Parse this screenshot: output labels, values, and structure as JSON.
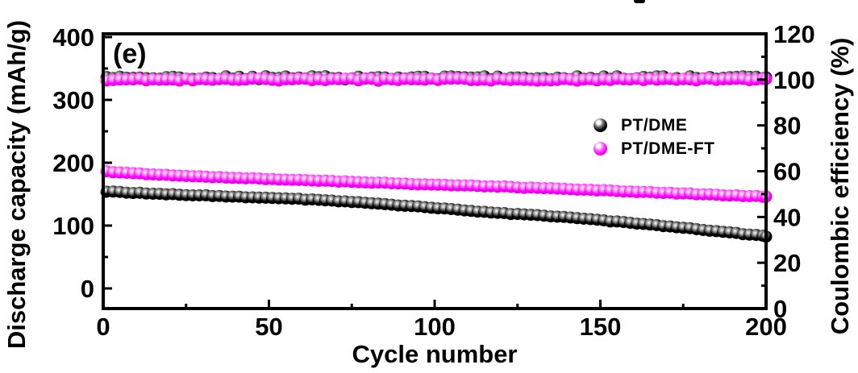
{
  "panel_label": "(e)",
  "axes": {
    "x": {
      "title": "Cycle number",
      "range": [
        0,
        200
      ],
      "ticks": [
        0,
        50,
        100,
        150,
        200
      ],
      "minor_ticks": [
        25,
        75,
        125,
        175
      ]
    },
    "y_left": {
      "title": "Discharge capacity (mAh/g)",
      "range": [
        0,
        400
      ],
      "ticks": [
        0,
        100,
        200,
        300,
        400
      ],
      "minor_ticks": [
        50,
        150,
        250,
        350
      ]
    },
    "y_right": {
      "title": "Coulombic efficiency (%)",
      "range": [
        0,
        120
      ],
      "ticks": [
        0,
        20,
        40,
        60,
        80,
        100,
        120
      ],
      "minor_ticks": [
        10,
        30,
        50,
        70,
        90,
        110
      ]
    }
  },
  "legend": {
    "items": [
      {
        "label": "PT/DME",
        "color": "#000000"
      },
      {
        "label": "PT/DME-FT",
        "color": "#ff00ff"
      }
    ]
  },
  "colors": {
    "black_series": "#000000",
    "magenta_series": "#ff00ff",
    "axis": "#000000",
    "background": "#ffffff"
  },
  "chart_data": {
    "type": "scatter",
    "title": "",
    "xlabel": "Cycle number",
    "ylabel_left": "Discharge capacity (mAh/g)",
    "ylabel_right": "Coulombic efficiency (%)",
    "x_range": [
      0,
      200
    ],
    "y_left_range": [
      0,
      400
    ],
    "y_right_range": [
      0,
      120
    ],
    "grid": false,
    "legend_position": "right-middle-inside",
    "marker_step_cycles": 2,
    "series": [
      {
        "name": "PT/DME coulombic efficiency",
        "axis": "right",
        "color": "#000000",
        "approx_constant": 100.8,
        "noise": 0.7,
        "seed": 1
      },
      {
        "name": "PT/DME-FT coulombic efficiency",
        "axis": "right",
        "color": "#ff00ff",
        "approx_constant": 100.0,
        "noise": 0.5,
        "seed": 2
      },
      {
        "name": "PT/DME discharge capacity",
        "axis": "left",
        "color": "#000000",
        "noise": 0.6,
        "seed": 3,
        "keypoints": [
          [
            1,
            154
          ],
          [
            20,
            150
          ],
          [
            40,
            146
          ],
          [
            60,
            142
          ],
          [
            80,
            136
          ],
          [
            100,
            128
          ],
          [
            120,
            120
          ],
          [
            140,
            113
          ],
          [
            160,
            104
          ],
          [
            180,
            94
          ],
          [
            200,
            83
          ]
        ]
      },
      {
        "name": "PT/DME-FT discharge capacity",
        "axis": "left",
        "color": "#ff00ff",
        "noise": 0.6,
        "seed": 4,
        "keypoints": [
          [
            1,
            186
          ],
          [
            20,
            180
          ],
          [
            40,
            176
          ],
          [
            60,
            172
          ],
          [
            80,
            169
          ],
          [
            100,
            165
          ],
          [
            120,
            162
          ],
          [
            140,
            158
          ],
          [
            160,
            154
          ],
          [
            180,
            150
          ],
          [
            200,
            146
          ]
        ]
      }
    ]
  }
}
